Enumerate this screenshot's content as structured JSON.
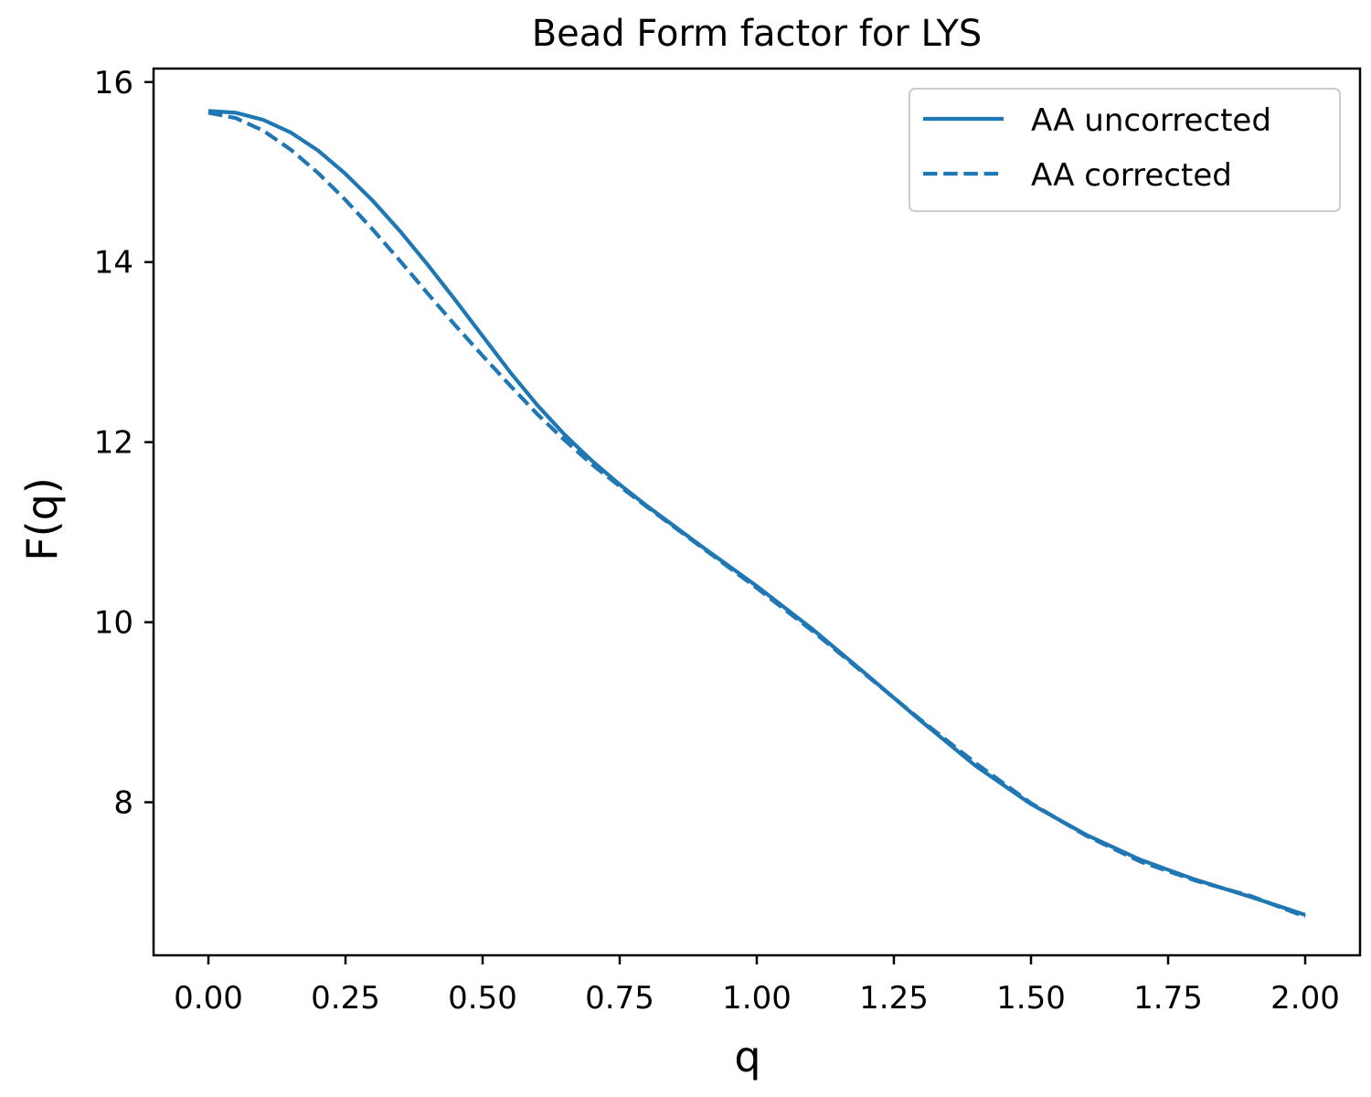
{
  "chart_data": {
    "type": "line",
    "title": "Bead Form factor for LYS",
    "xlabel": "q",
    "ylabel": "F(q)",
    "xlim": [
      -0.1,
      2.1
    ],
    "ylim": [
      6.3,
      16.15
    ],
    "xticks": [
      0.0,
      0.25,
      0.5,
      0.75,
      1.0,
      1.25,
      1.5,
      1.75,
      2.0
    ],
    "xtick_labels": [
      "0.00",
      "0.25",
      "0.50",
      "0.75",
      "1.00",
      "1.25",
      "1.50",
      "1.75",
      "2.00"
    ],
    "yticks": [
      8,
      10,
      12,
      14,
      16
    ],
    "ytick_labels": [
      "8",
      "10",
      "12",
      "14",
      "16"
    ],
    "grid": false,
    "legend_position": "top-right",
    "color": "#1f77b4",
    "series": [
      {
        "name": "AA uncorrected",
        "style": "solid",
        "x": [
          0.0,
          0.05,
          0.1,
          0.15,
          0.2,
          0.25,
          0.3,
          0.35,
          0.4,
          0.45,
          0.5,
          0.55,
          0.6,
          0.65,
          0.7,
          0.75,
          0.8,
          0.9,
          1.0,
          1.1,
          1.2,
          1.3,
          1.4,
          1.5,
          1.6,
          1.7,
          1.8,
          1.9,
          2.0
        ],
        "values": [
          15.68,
          15.66,
          15.58,
          15.44,
          15.24,
          14.98,
          14.68,
          14.34,
          13.97,
          13.58,
          13.18,
          12.78,
          12.41,
          12.08,
          11.79,
          11.53,
          11.29,
          10.84,
          10.4,
          9.93,
          9.42,
          8.9,
          8.4,
          7.98,
          7.64,
          7.36,
          7.14,
          6.95,
          6.75
        ]
      },
      {
        "name": "AA corrected",
        "style": "dashed",
        "x": [
          0.0,
          0.05,
          0.1,
          0.15,
          0.2,
          0.25,
          0.3,
          0.35,
          0.4,
          0.45,
          0.5,
          0.55,
          0.6,
          0.65,
          0.7,
          0.75,
          0.8,
          0.9,
          1.0,
          1.1,
          1.2,
          1.3,
          1.4,
          1.5,
          1.6,
          1.7,
          1.8,
          1.9,
          2.0
        ],
        "values": [
          15.66,
          15.6,
          15.46,
          15.25,
          14.99,
          14.69,
          14.36,
          14.01,
          13.65,
          13.3,
          12.96,
          12.63,
          12.31,
          12.02,
          11.75,
          11.51,
          11.28,
          10.83,
          10.38,
          9.91,
          9.41,
          8.91,
          8.43,
          7.99,
          7.63,
          7.34,
          7.13,
          6.96,
          6.73
        ]
      }
    ]
  }
}
